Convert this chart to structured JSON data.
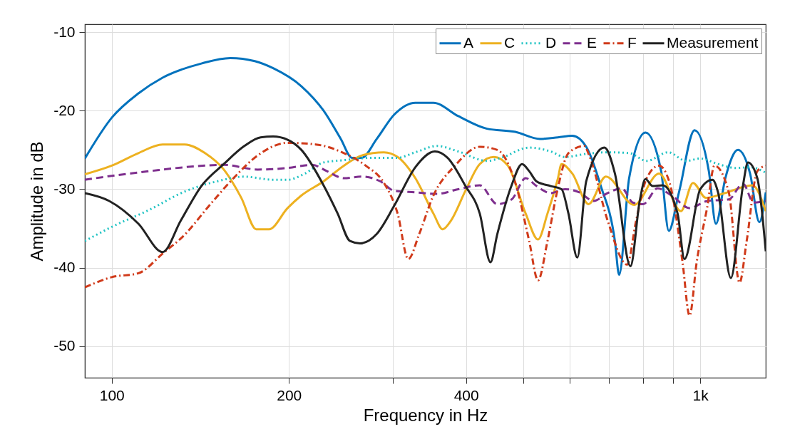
{
  "chart_data": {
    "type": "line",
    "xlabel": "Frequency in Hz",
    "ylabel": "Amplitude in dB",
    "log": "x",
    "grid": true,
    "legend": "top right",
    "xlim": [
      90,
      1292
    ],
    "xticks": [
      100,
      200,
      {
        "value": 300,
        "label": null
      },
      400,
      {
        "value": 500,
        "label": null
      },
      {
        "value": 600,
        "label": null
      },
      {
        "value": 700,
        "label": null
      },
      {
        "value": 800,
        "label": null
      },
      {
        "value": 900,
        "label": null
      },
      {
        "value": 1000,
        "label": "1k"
      }
    ],
    "ylim": [
      -54,
      -9
    ],
    "yticks": [
      -50,
      -40,
      -30,
      -20,
      -10
    ],
    "series": [
      {
        "name": "A",
        "color": "#0072bd",
        "line_style": "solid",
        "x": [
          90,
          100,
          111,
          122,
          142,
          159,
          175,
          188,
          210,
          229,
          245,
          256,
          266,
          282,
          302,
          328,
          352,
          388,
          434,
          485,
          534,
          573,
          606,
          640,
          677,
          716,
          728,
          757,
          807,
          858,
          884,
          920,
          978,
          1034,
          1063,
          1103,
          1159,
          1215,
          1260,
          1292
        ],
        "values": [
          -26.1,
          -20.9,
          -17.8,
          -15.8,
          -14.0,
          -13.3,
          -13.7,
          -14.6,
          -16.9,
          -20.0,
          -23.6,
          -26.0,
          -26.0,
          -23.6,
          -20.5,
          -19.0,
          -19.0,
          -20.7,
          -22.3,
          -22.7,
          -23.6,
          -23.4,
          -23.2,
          -24.6,
          -29.5,
          -36.6,
          -40.9,
          -28.6,
          -22.8,
          -27.7,
          -35.3,
          -30.4,
          -22.5,
          -27.7,
          -34.4,
          -28.6,
          -25.0,
          -28.0,
          -34.2,
          -30.4
        ]
      },
      {
        "name": "C",
        "color": "#edb120",
        "line_style": "solid",
        "x": [
          90,
          100,
          111,
          122,
          133,
          144,
          155,
          166,
          176,
          185,
          199,
          210,
          229,
          248,
          266,
          290,
          306,
          328,
          352,
          365,
          377,
          399,
          422,
          446,
          471,
          505,
          530,
          550,
          573,
          581,
          606,
          646,
          691,
          772,
          851,
          927,
          972,
          1022,
          1100,
          1226,
          1292
        ],
        "values": [
          -28.1,
          -27.0,
          -25.4,
          -24.3,
          -24.3,
          -25.4,
          -27.5,
          -31.1,
          -35.1,
          -35.1,
          -32.4,
          -30.8,
          -29.0,
          -27.0,
          -25.7,
          -25.3,
          -25.9,
          -28.6,
          -33.1,
          -35.1,
          -34.0,
          -30.2,
          -26.8,
          -25.9,
          -27.0,
          -33.1,
          -36.4,
          -33.1,
          -28.6,
          -26.8,
          -28.0,
          -31.9,
          -28.4,
          -32.0,
          -28.0,
          -32.8,
          -29.2,
          -31.1,
          -30.5,
          -29.5,
          -32.8
        ]
      },
      {
        "name": "D",
        "color": "#1fc3c3",
        "line_style": "dotted",
        "x": [
          90,
          100,
          116,
          133,
          151,
          168,
          188,
          199,
          213,
          229,
          248,
          278,
          306,
          328,
          357,
          388,
          434,
          459,
          512,
          557,
          589,
          640,
          696,
          757,
          811,
          882,
          946,
          1000,
          1072,
          1150,
          1215,
          1292
        ],
        "values": [
          -36.6,
          -34.8,
          -32.6,
          -30.3,
          -29.0,
          -28.4,
          -28.8,
          -28.8,
          -28.0,
          -26.6,
          -26.3,
          -26.0,
          -26.0,
          -25.3,
          -24.5,
          -25.2,
          -26.4,
          -26.0,
          -24.7,
          -25.2,
          -25.9,
          -25.5,
          -25.3,
          -25.4,
          -26.4,
          -25.3,
          -26.4,
          -26.1,
          -26.8,
          -27.3,
          -27.2,
          -27.9
        ]
      },
      {
        "name": "E",
        "color": "#7e2f8e",
        "line_style": "dashed",
        "x": [
          90,
          100,
          116,
          133,
          155,
          177,
          199,
          219,
          232,
          248,
          266,
          286,
          302,
          328,
          357,
          388,
          422,
          452,
          478,
          505,
          527,
          557,
          589,
          623,
          659,
          696,
          736,
          768,
          800,
          846,
          894,
          959,
          1028,
          1118,
          1182,
          1232,
          1292
        ],
        "values": [
          -28.8,
          -28.3,
          -27.7,
          -27.2,
          -26.9,
          -27.5,
          -27.3,
          -26.9,
          -27.7,
          -28.6,
          -28.4,
          -29.0,
          -30.2,
          -30.4,
          -30.6,
          -30.0,
          -29.5,
          -31.9,
          -31.3,
          -28.6,
          -29.6,
          -30.5,
          -30.0,
          -30.4,
          -31.5,
          -30.5,
          -29.9,
          -31.7,
          -31.9,
          -29.9,
          -30.8,
          -32.4,
          -31.5,
          -31.3,
          -29.3,
          -31.7,
          -31.5
        ]
      },
      {
        "name": "F",
        "color": "#d03a1a",
        "line_style": "dashdot",
        "x": [
          90,
          100,
          111,
          122,
          133,
          146,
          161,
          177,
          199,
          222,
          248,
          270,
          290,
          306,
          319,
          333,
          352,
          383,
          422,
          452,
          485,
          512,
          530,
          550,
          573,
          597,
          635,
          649,
          696,
          751,
          778,
          811,
          851,
          887,
          933,
          959,
          986,
          1028,
          1057,
          1118,
          1166,
          1199,
          1250,
          1292
        ],
        "values": [
          -42.5,
          -41.2,
          -40.7,
          -38.2,
          -35.8,
          -32.2,
          -28.6,
          -25.7,
          -24.1,
          -24.3,
          -25.4,
          -27.0,
          -29.2,
          -33.1,
          -38.9,
          -35.7,
          -30.8,
          -27.0,
          -24.6,
          -25.0,
          -29.2,
          -36.6,
          -41.6,
          -36.6,
          -29.8,
          -25.4,
          -24.5,
          -25.9,
          -34.0,
          -39.6,
          -34.0,
          -28.6,
          -27.0,
          -29.2,
          -39.3,
          -46.1,
          -39.3,
          -32.2,
          -27.0,
          -30.4,
          -41.9,
          -36.6,
          -27.7,
          -27.0
        ]
      },
      {
        "name": "Measurement",
        "color": "#222222",
        "line_style": "solid",
        "x": [
          90,
          99,
          111,
          122,
          131,
          142,
          155,
          168,
          179,
          188,
          199,
          210,
          229,
          242,
          254,
          264,
          282,
          302,
          328,
          354,
          372,
          399,
          422,
          440,
          452,
          478,
          498,
          512,
          527,
          557,
          581,
          597,
          618,
          640,
          687,
          716,
          761,
          789,
          807,
          830,
          863,
          915,
          940,
          1000,
          1049,
          1072,
          1127,
          1182,
          1205,
          1250,
          1292
        ],
        "values": [
          -30.5,
          -31.5,
          -34.4,
          -38.0,
          -34.0,
          -29.6,
          -26.8,
          -24.5,
          -23.4,
          -23.3,
          -23.7,
          -25.0,
          -29.5,
          -33.1,
          -36.6,
          -36.9,
          -35.7,
          -32.1,
          -27.2,
          -25.2,
          -26.0,
          -29.6,
          -33.1,
          -39.3,
          -35.7,
          -29.5,
          -26.8,
          -27.7,
          -29.0,
          -29.6,
          -30.0,
          -33.1,
          -38.7,
          -29.0,
          -24.7,
          -28.0,
          -39.8,
          -31.5,
          -28.7,
          -29.6,
          -29.5,
          -33.1,
          -38.9,
          -30.0,
          -28.8,
          -30.4,
          -41.3,
          -29.5,
          -26.6,
          -28.6,
          -37.9
        ]
      }
    ]
  }
}
